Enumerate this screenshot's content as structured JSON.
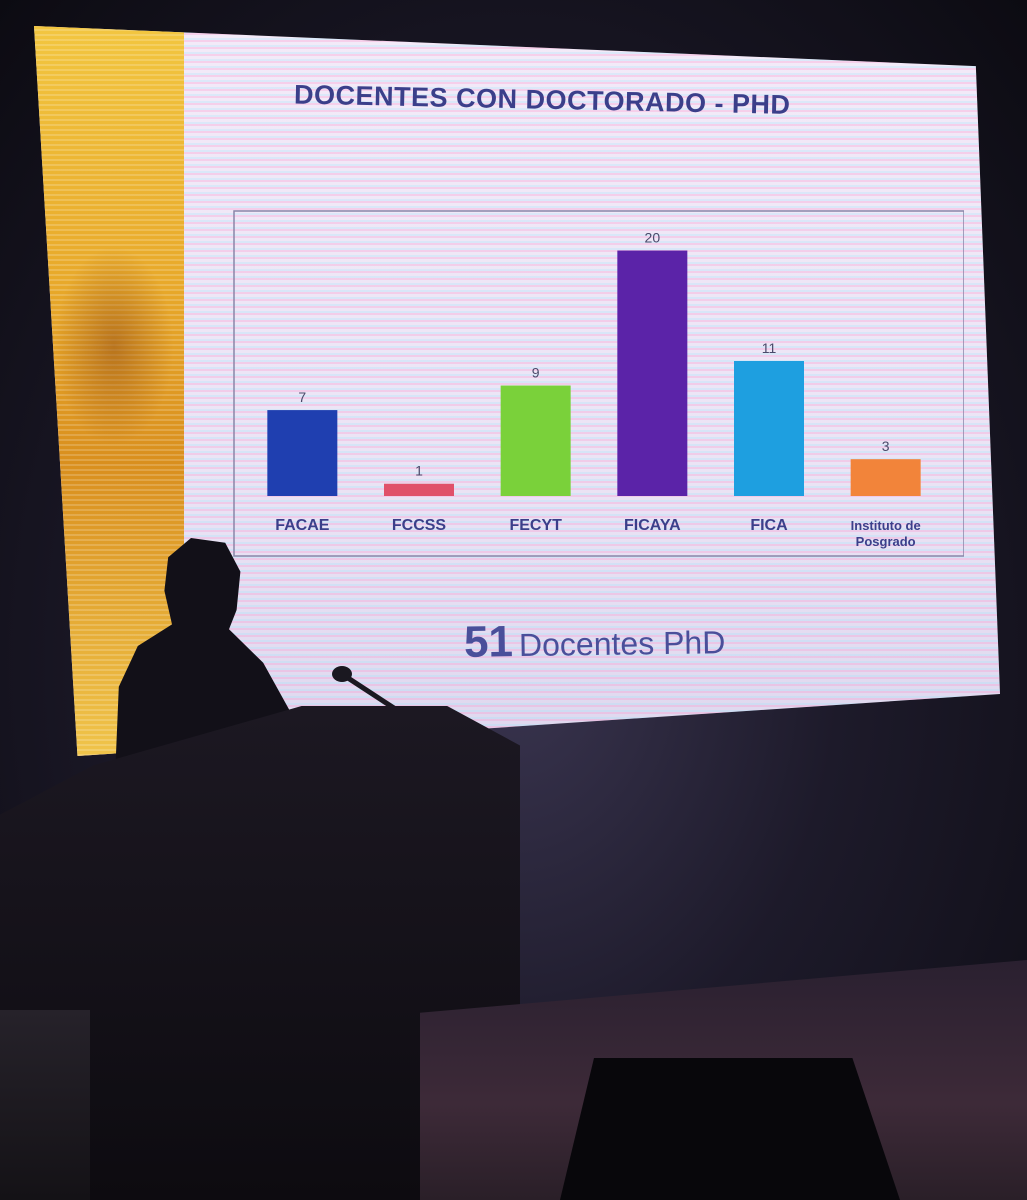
{
  "slide": {
    "title": "DOCENTES CON DOCTORADO - PHD",
    "total_number": "51",
    "total_label": "Docentes PhD"
  },
  "chart_data": {
    "type": "bar",
    "title": "DOCENTES CON DOCTORADO - PHD",
    "categories": [
      "FACAE",
      "FCCSS",
      "FECYT",
      "FICAYA",
      "FICA",
      "Instituto de Posgrado"
    ],
    "values": [
      7,
      1,
      9,
      20,
      11,
      3
    ],
    "colors": [
      "#1f3fb0",
      "#e0506a",
      "#7ad13a",
      "#5b23a8",
      "#1e9fe0",
      "#f2843a"
    ],
    "ylim": [
      0,
      22
    ],
    "grid": false,
    "legend": "none"
  }
}
